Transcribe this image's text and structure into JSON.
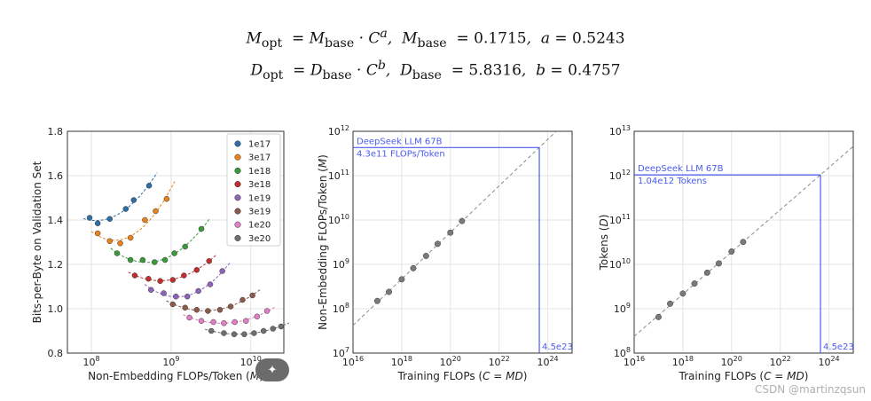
{
  "formulas": {
    "line1": {
      "lhs": "M",
      "lhs_sub": "opt",
      "base": "M",
      "base_sub": "base",
      "exp": "a",
      "coef_name": "M",
      "coef_sub": "base",
      "coef_val": "0.1715",
      "exp_name": "a",
      "exp_val": "0.5243"
    },
    "line2": {
      "lhs": "D",
      "lhs_sub": "opt",
      "base": "D",
      "base_sub": "base",
      "exp": "b",
      "coef_name": "D",
      "coef_sub": "base",
      "coef_val": "5.8316",
      "exp_name": "b",
      "exp_val": "0.4757"
    }
  },
  "colors": {
    "accent": "#4a5cf0",
    "point": "#7a7a7a",
    "fit": "#8a8a8a"
  },
  "watermark": "CSDN @martinzqsun",
  "chart_data": [
    {
      "type": "scatter",
      "title": "",
      "xlabel": "Non-Embedding FLOPs/Token (M)",
      "ylabel": "Bits-per-Byte on Validation Set",
      "xscale": "log",
      "xlim": [
        50000000.0,
        26000000000.0
      ],
      "ylim": [
        0.8,
        1.8
      ],
      "xtick_labels": [
        "10^8",
        "10^9",
        "10^10"
      ],
      "ytick_labels": [
        "0.8",
        "1.0",
        "1.2",
        "1.4",
        "1.6",
        "1.8"
      ],
      "grid": true,
      "legend": "top-right",
      "series": [
        {
          "name": "1e17",
          "color": "#2f6ea6",
          "x": [
            95000000.0,
            120000000.0,
            170000000.0,
            270000000.0,
            340000000.0,
            530000000.0
          ],
          "y": [
            1.41,
            1.385,
            1.405,
            1.45,
            1.49,
            1.555
          ]
        },
        {
          "name": "3e17",
          "color": "#e8821c",
          "x": [
            120000000.0,
            170000000.0,
            230000000.0,
            310000000.0,
            470000000.0,
            640000000.0,
            880000000.0
          ],
          "y": [
            1.34,
            1.305,
            1.295,
            1.32,
            1.4,
            1.44,
            1.495
          ]
        },
        {
          "name": "1e18",
          "color": "#3a9a3a",
          "x": [
            210000000.0,
            310000000.0,
            440000000.0,
            620000000.0,
            840000000.0,
            1100000000.0,
            1500000000.0,
            2400000000.0
          ],
          "y": [
            1.25,
            1.22,
            1.22,
            1.21,
            1.22,
            1.25,
            1.28,
            1.36
          ]
        },
        {
          "name": "3e18",
          "color": "#c02e2e",
          "x": [
            350000000.0,
            520000000.0,
            730000000.0,
            1050000000.0,
            1450000000.0,
            2100000000.0,
            3000000000.0
          ],
          "y": [
            1.15,
            1.135,
            1.125,
            1.13,
            1.15,
            1.175,
            1.215
          ]
        },
        {
          "name": "1e19",
          "color": "#8e63b8",
          "x": [
            560000000.0,
            810000000.0,
            1150000000.0,
            1600000000.0,
            2200000000.0,
            3100000000.0,
            4400000000.0
          ],
          "y": [
            1.085,
            1.07,
            1.055,
            1.055,
            1.08,
            1.11,
            1.17
          ]
        },
        {
          "name": "3e19",
          "color": "#8b5a4a",
          "x": [
            1050000000.0,
            1500000000.0,
            2100000000.0,
            2900000000.0,
            4100000000.0,
            5600000000.0,
            7900000000.0,
            10500000000.0
          ],
          "y": [
            1.02,
            1.005,
            0.995,
            0.99,
            0.995,
            1.01,
            1.04,
            1.06
          ]
        },
        {
          "name": "1e20",
          "color": "#e07fc4",
          "x": [
            1700000000.0,
            2400000000.0,
            3400000000.0,
            4600000000.0,
            6300000000.0,
            8700000000.0,
            12000000000.0,
            16000000000.0
          ],
          "y": [
            0.96,
            0.945,
            0.94,
            0.935,
            0.94,
            0.945,
            0.965,
            0.99
          ]
        },
        {
          "name": "3e20",
          "color": "#6e6e6e",
          "x": [
            3200000000.0,
            4600000000.0,
            6200000000.0,
            8300000000.0,
            11000000000.0,
            14500000000.0,
            19000000000.0,
            24000000000.0
          ],
          "y": [
            0.9,
            0.89,
            0.885,
            0.885,
            0.89,
            0.9,
            0.91,
            0.92
          ]
        }
      ]
    },
    {
      "type": "scatter",
      "title": "",
      "xlabel": "Training FLOPs (C = MD)",
      "ylabel": "Non-Embedding FLOPs/Token (M)",
      "xscale": "log",
      "yscale": "log",
      "xlim": [
        1e+16,
        1e+25
      ],
      "ylim": [
        10000000.0,
        1000000000000.0
      ],
      "xtick_labels": [
        "10^16",
        "10^18",
        "10^20",
        "10^22",
        "10^24"
      ],
      "ytick_labels": [
        "10^7",
        "10^8",
        "10^9",
        "10^10",
        "10^11",
        "10^12"
      ],
      "grid": true,
      "series": [
        {
          "x": [
            1e+17,
            3e+17,
            1e+18,
            3e+18,
            1e+19,
            3e+19,
            1e+20,
            3e+20
          ],
          "y": [
            150000000.0,
            240000000.0,
            460000000.0,
            820000000.0,
            1550000000.0,
            2900000000.0,
            5200000000.0,
            9500000000.0
          ]
        }
      ],
      "fit": {
        "coef": 0.1715,
        "exp": 0.5243
      },
      "annotation": {
        "label": "DeepSeek LLM 67B",
        "value": "4.3e11 FLOPs/Token",
        "x": 4.5e+23,
        "y": 430000000000.0,
        "x_label": "4.5e23"
      }
    },
    {
      "type": "scatter",
      "title": "",
      "xlabel": "Training FLOPs (C = MD)",
      "ylabel": "Tokens (D)",
      "xscale": "log",
      "yscale": "log",
      "xlim": [
        1e+16,
        1e+25
      ],
      "ylim": [
        100000000.0,
        10000000000000.0
      ],
      "xtick_labels": [
        "10^16",
        "10^18",
        "10^20",
        "10^22",
        "10^24"
      ],
      "ytick_labels": [
        "10^8",
        "10^9",
        "10^10",
        "10^11",
        "10^12",
        "10^13"
      ],
      "grid": true,
      "series": [
        {
          "x": [
            1e+17,
            3e+17,
            1e+18,
            3e+18,
            1e+19,
            3e+19,
            1e+20,
            3e+20
          ],
          "y": [
            650000000.0,
            1300000000.0,
            2200000000.0,
            3700000000.0,
            6500000000.0,
            10500000000.0,
            19500000000.0,
            32000000000.0
          ]
        }
      ],
      "fit": {
        "coef": 5.8316,
        "exp": 0.4757
      },
      "annotation": {
        "label": "DeepSeek LLM 67B",
        "value": "1.04e12 Tokens",
        "x": 4.5e+23,
        "y": 1040000000000.0,
        "x_label": "4.5e23"
      }
    }
  ]
}
